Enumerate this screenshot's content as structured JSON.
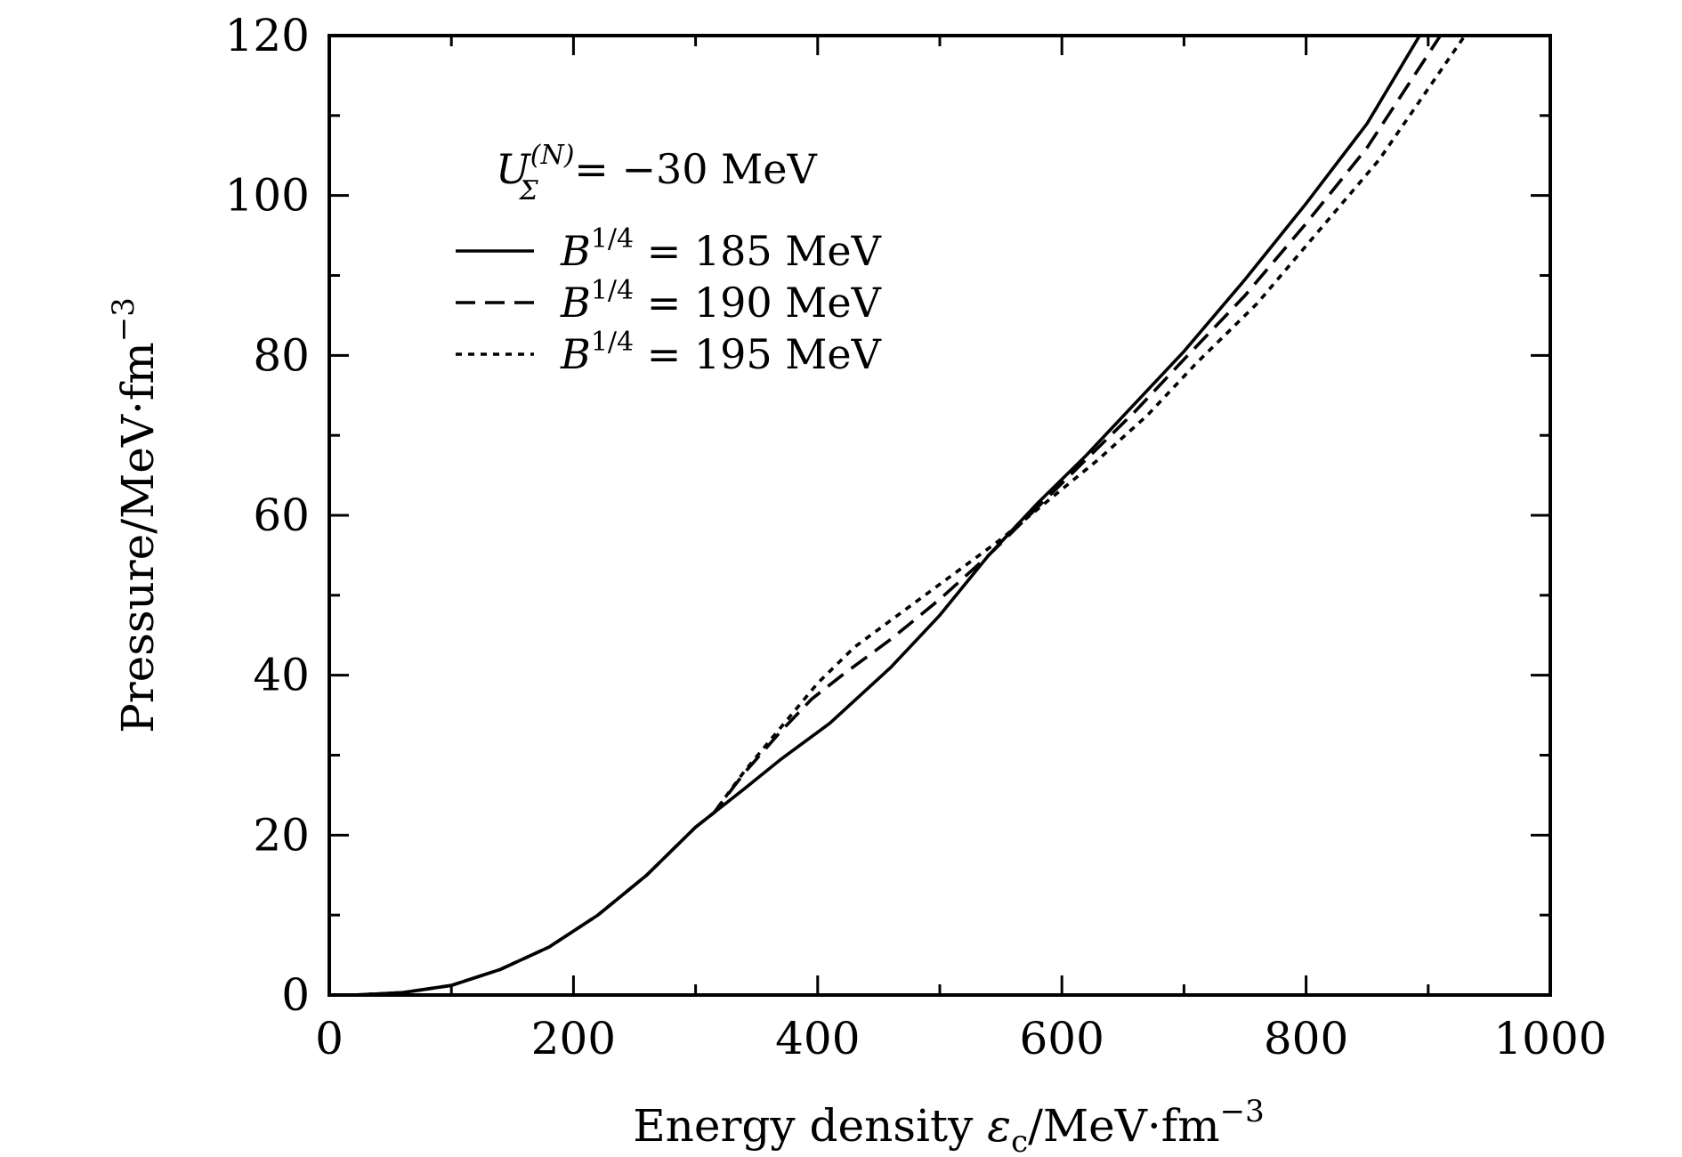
{
  "chart_data": {
    "type": "line",
    "xlabel": "Energy density ε_c/MeV·fm^-3",
    "xlabel_parts": {
      "main": "Energy density ",
      "var": "ε",
      "sub": "c",
      "unit": "/MeV·fm",
      "exp": "−3"
    },
    "ylabel": "Pressure/MeV·fm^-3",
    "ylabel_parts": {
      "main": "Pressure/MeV·fm",
      "exp": "−3"
    },
    "xlim": [
      0,
      1000
    ],
    "ylim": [
      0,
      120
    ],
    "x_ticks": [
      0,
      200,
      400,
      600,
      800,
      1000
    ],
    "x_tick_labels": [
      "0",
      "200",
      "400",
      "600",
      "800",
      "1000"
    ],
    "y_ticks": [
      0,
      20,
      40,
      60,
      80,
      100,
      120
    ],
    "y_tick_labels": [
      "0",
      "20",
      "40",
      "60",
      "80",
      "100",
      "120"
    ],
    "grid": false,
    "legend_position": "upper-left",
    "annotation": {
      "text": "U_Σ^(N) = −30 MeV",
      "var": "U",
      "sub": "Σ",
      "sup": "(N)",
      "rest": " = −30 MeV"
    },
    "series": [
      {
        "name": "B^1/4 = 185 MeV",
        "label_var": "B",
        "label_sup": "1/4",
        "label_rest": " = 185 MeV",
        "dash": "solid",
        "x": [
          20,
          60,
          100,
          140,
          180,
          220,
          260,
          300,
          315,
          340,
          370,
          410,
          460,
          500,
          540,
          580,
          620,
          660,
          700,
          750,
          800,
          850,
          893
        ],
        "y": [
          0,
          0.3,
          1.2,
          3.2,
          6.0,
          10.0,
          15.0,
          21.0,
          22.8,
          25.8,
          29.5,
          34.0,
          41.0,
          47.5,
          55.0,
          61.5,
          67.5,
          74.0,
          80.5,
          89.5,
          99.0,
          109.0,
          120.0
        ]
      },
      {
        "name": "B^1/4 = 190 MeV",
        "label_var": "B",
        "label_sup": "1/4",
        "label_rest": " = 190 MeV",
        "dash": "dashed",
        "x": [
          20,
          60,
          100,
          140,
          180,
          220,
          260,
          300,
          315,
          340,
          370,
          395,
          420,
          460,
          500,
          540,
          580,
          620,
          660,
          700,
          750,
          800,
          850,
          910
        ],
        "y": [
          0,
          0.3,
          1.2,
          3.2,
          6.0,
          10.0,
          15.0,
          21.0,
          22.8,
          27.8,
          33.0,
          37.0,
          40.0,
          44.5,
          49.5,
          55.0,
          61.0,
          67.0,
          73.0,
          79.5,
          87.5,
          96.5,
          106.0,
          120.0
        ]
      },
      {
        "name": "B^1/4 = 195 MeV",
        "label_var": "B",
        "label_sup": "1/4",
        "label_rest": " = 195 MeV",
        "dash": "dotted",
        "x": [
          20,
          60,
          100,
          140,
          180,
          220,
          260,
          300,
          315,
          340,
          370,
          400,
          430,
          470,
          510,
          550,
          590,
          630,
          670,
          710,
          760,
          810,
          860,
          930
        ],
        "y": [
          0,
          0.3,
          1.2,
          3.2,
          6.0,
          10.0,
          15.0,
          21.0,
          22.8,
          28.0,
          33.5,
          39.0,
          43.5,
          48.0,
          52.5,
          57.0,
          62.0,
          67.0,
          72.5,
          79.0,
          86.5,
          95.5,
          104.5,
          120.0
        ]
      }
    ]
  }
}
